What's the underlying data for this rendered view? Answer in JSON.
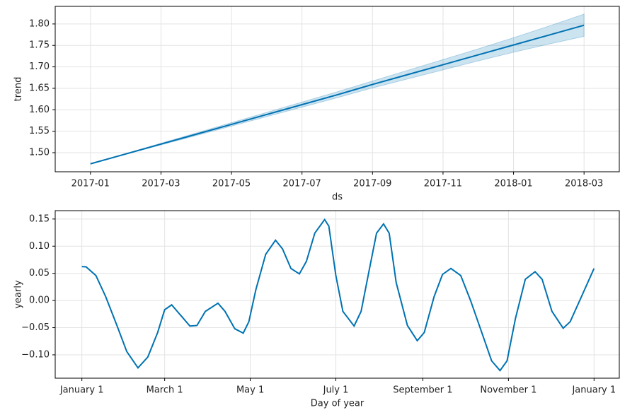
{
  "chart_data": [
    {
      "type": "line",
      "xlabel": "ds",
      "ylabel": "trend",
      "color": "#0072B2",
      "grid": true,
      "x": [
        "2017-01",
        "2017-02",
        "2017-03",
        "2017-04",
        "2017-05",
        "2017-06",
        "2017-07",
        "2017-08",
        "2017-09",
        "2017-10",
        "2017-11",
        "2017-12",
        "2018-01",
        "2018-02",
        "2018-03"
      ],
      "values": [
        1.474,
        1.497,
        1.52,
        1.543,
        1.566,
        1.589,
        1.612,
        1.635,
        1.659,
        1.682,
        1.705,
        1.728,
        1.751,
        1.774,
        1.797
      ],
      "lower": [
        1.474,
        1.496,
        1.518,
        1.54,
        1.562,
        1.584,
        1.606,
        1.628,
        1.651,
        1.672,
        1.693,
        1.714,
        1.734,
        1.753,
        1.771
      ],
      "upper": [
        1.474,
        1.498,
        1.522,
        1.546,
        1.57,
        1.594,
        1.618,
        1.642,
        1.667,
        1.692,
        1.717,
        1.742,
        1.768,
        1.795,
        1.823
      ],
      "xlim": [
        "2016-12",
        "2018-04"
      ],
      "xticks": [
        "2017-01",
        "2017-03",
        "2017-05",
        "2017-07",
        "2017-09",
        "2017-11",
        "2018-01",
        "2018-03"
      ],
      "ylim": [
        1.4555,
        1.841
      ],
      "yticks": [
        {
          "value": 1.5,
          "label": "1.50"
        },
        {
          "value": 1.55,
          "label": "1.55"
        },
        {
          "value": 1.6,
          "label": "1.60"
        },
        {
          "value": 1.65,
          "label": "1.65"
        },
        {
          "value": 1.7,
          "label": "1.70"
        },
        {
          "value": 1.75,
          "label": "1.75"
        },
        {
          "value": 1.8,
          "label": "1.80"
        }
      ]
    },
    {
      "type": "line",
      "xlabel": "Day of year",
      "ylabel": "yearly",
      "color": "#0072B2",
      "grid": true,
      "x": [
        0,
        3,
        10,
        17,
        25,
        32,
        40,
        47,
        54,
        59,
        64,
        70,
        77,
        82,
        88,
        97,
        102,
        109,
        115,
        119,
        124,
        131,
        138,
        143,
        149,
        155,
        160,
        166,
        173,
        176,
        181,
        186,
        194,
        199,
        205,
        210,
        215,
        219,
        224,
        232,
        239,
        244,
        251,
        257,
        263,
        270,
        277,
        285,
        292,
        298,
        303,
        309,
        316,
        323,
        328,
        335,
        343,
        348,
        356,
        365
      ],
      "values": [
        0.0625,
        0.062,
        0.046,
        0.007,
        -0.046,
        -0.094,
        -0.124,
        -0.104,
        -0.059,
        -0.017,
        -0.008,
        -0.026,
        -0.047,
        -0.046,
        -0.02,
        -0.005,
        -0.02,
        -0.052,
        -0.06,
        -0.039,
        0.02,
        0.085,
        0.111,
        0.095,
        0.059,
        0.049,
        0.072,
        0.124,
        0.149,
        0.137,
        0.046,
        -0.02,
        -0.047,
        -0.02,
        0.059,
        0.124,
        0.141,
        0.124,
        0.033,
        -0.046,
        -0.074,
        -0.059,
        0.007,
        0.048,
        0.059,
        0.046,
        0,
        -0.059,
        -0.111,
        -0.129,
        -0.111,
        -0.033,
        0.039,
        0.053,
        0.039,
        -0.02,
        -0.051,
        -0.039,
        0.007,
        0.059
      ],
      "xlim": [
        -19,
        383
      ],
      "xticks": [
        {
          "value": 0,
          "label": "January 1"
        },
        {
          "value": 59,
          "label": "March 1"
        },
        {
          "value": 120,
          "label": "May 1"
        },
        {
          "value": 181,
          "label": "July 1"
        },
        {
          "value": 243,
          "label": "September 1"
        },
        {
          "value": 304,
          "label": "November 1"
        },
        {
          "value": 365,
          "label": "January 1"
        }
      ],
      "ylim": [
        -0.143,
        0.1654
      ],
      "yticks": [
        {
          "value": -0.1,
          "label": "−0.10"
        },
        {
          "value": -0.05,
          "label": "−0.05"
        },
        {
          "value": 0,
          "label": "0.00"
        },
        {
          "value": 0.05,
          "label": "0.05"
        },
        {
          "value": 0.1,
          "label": "0.10"
        },
        {
          "value": 0.15,
          "label": "0.15"
        }
      ]
    }
  ]
}
